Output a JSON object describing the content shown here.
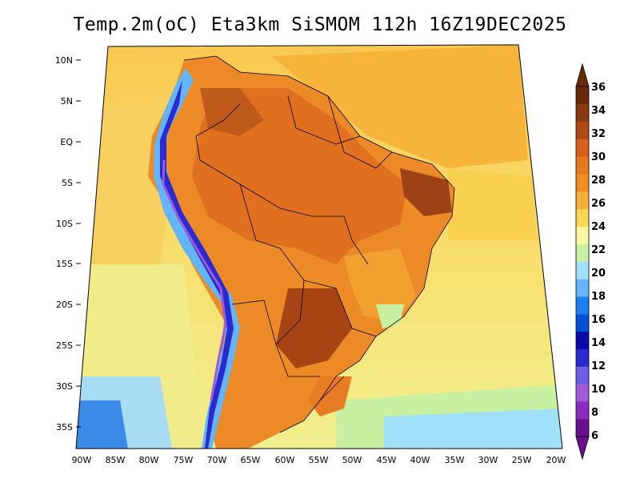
{
  "title": "Temp.2m(oC) Eta3km SiSMOM 112h 16Z19DEC2025",
  "map": {
    "variable": "2 m air temperature",
    "units": "°C",
    "model": "Eta3km SiSMOM",
    "forecast_hour": "112h",
    "valid_time": "16Z19DEC2025",
    "region": "South America",
    "lon_labels": [
      "90W",
      "85W",
      "80W",
      "75W",
      "70W",
      "65W",
      "60W",
      "55W",
      "50W",
      "45W",
      "40W",
      "35W",
      "30W",
      "25W",
      "20W"
    ],
    "lat_labels": [
      "10N",
      "5N",
      "EQ",
      "5S",
      "10S",
      "15S",
      "20S",
      "25S",
      "30S",
      "35S"
    ]
  },
  "colorbar": {
    "labels": [
      "6",
      "8",
      "10",
      "12",
      "14",
      "16",
      "18",
      "20",
      "22",
      "24",
      "26",
      "28",
      "30",
      "32",
      "34",
      "36"
    ],
    "colors": [
      "#6a0f8e",
      "#8a2bc0",
      "#a05ad8",
      "#6d5fe8",
      "#2a2ad0",
      "#0a0aa8",
      "#0050d8",
      "#1e7ff0",
      "#64b4f8",
      "#a0e0f8",
      "#c8f0a0",
      "#f8f8a0",
      "#f8d850",
      "#f8b038",
      "#f0901e",
      "#e8781e",
      "#d8601c",
      "#b04a14",
      "#8a3a10",
      "#6a2a0a"
    ]
  }
}
